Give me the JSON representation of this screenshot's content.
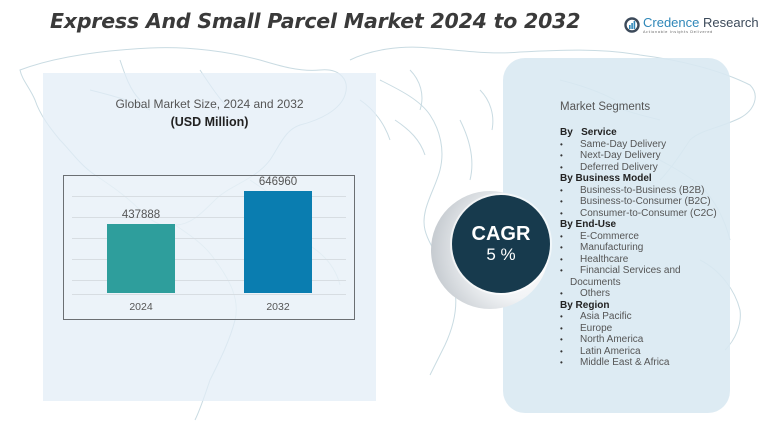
{
  "header": {
    "title": "Express And Small Parcel Market  2024 to 2032",
    "logo": {
      "name_primary": "Credence",
      "name_secondary": " Research",
      "tagline": "Actionable Insights Delivered",
      "icon": "credence-logo-icon"
    }
  },
  "chart_panel": {
    "title": "Global Market Size, 2024 and 2032",
    "unit": "(USD Million)"
  },
  "chart_data": {
    "type": "bar",
    "title": "Global Market Size, 2024 and 2032",
    "subtitle": "(USD Million)",
    "categories": [
      "2024",
      "2032"
    ],
    "values": [
      437888,
      646960
    ],
    "value_labels": [
      "437888",
      "646960"
    ],
    "colors": [
      "#2e9e9c",
      "#0a7db0"
    ],
    "xlabel": "",
    "ylabel": "",
    "ylim": [
      0,
      750000
    ],
    "grid": true,
    "legend": "none"
  },
  "cagr": {
    "label": "CAGR",
    "value": "5 %",
    "color": "#173a4d"
  },
  "segments": {
    "title": "Market Segments",
    "groups": [
      {
        "title": "By   Service",
        "items": [
          "Same-Day Delivery",
          "Next-Day Delivery",
          "Deferred Delivery"
        ]
      },
      {
        "title": "By Business Model",
        "items": [
          "Business-to-Business (B2B)",
          "Business-to-Consumer (B2C)",
          "Consumer-to-Consumer (C2C)"
        ]
      },
      {
        "title": "By End-Use",
        "items": [
          "E-Commerce",
          "Manufacturing",
          "Healthcare",
          "Financial Services and",
          "Others"
        ],
        "continuation": "Documents"
      },
      {
        "title": "By Region",
        "items": [
          "Asia Pacific",
          "Europe",
          "North America",
          "Latin America",
          "Middle East & Africa"
        ]
      }
    ],
    "bullet": "•"
  }
}
